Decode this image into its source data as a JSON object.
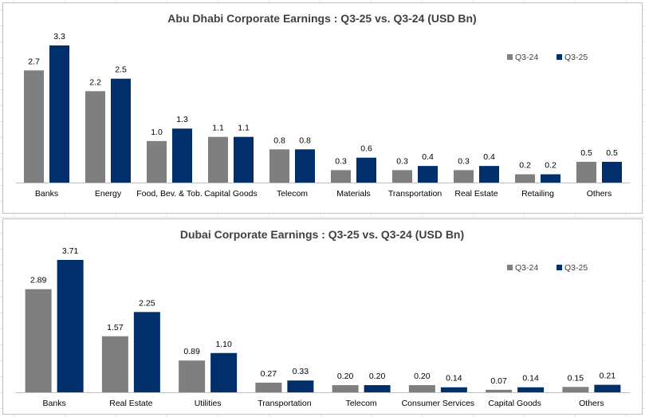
{
  "colors": {
    "q324": "#7f7f7f",
    "q325": "#002f6c",
    "axis": "#bfbfbf"
  },
  "chart_data": [
    {
      "type": "bar",
      "title": "Abu Dhabi Corporate Earnings : Q3-25 vs. Q3-24 (USD Bn)",
      "categories": [
        "Banks",
        "Energy",
        "Food, Bev. & Tob.",
        "Capital Goods",
        "Telecom",
        "Materials",
        "Transportation",
        "Real Estate",
        "Retailing",
        "Others"
      ],
      "series": [
        {
          "name": "Q3-24",
          "values": [
            2.7,
            2.2,
            1.0,
            1.1,
            0.8,
            0.3,
            0.3,
            0.3,
            0.2,
            0.5
          ],
          "labels": [
            "2.7",
            "2.2",
            "1.0",
            "1.1",
            "0.8",
            "0.3",
            "0.3",
            "0.3",
            "0.2",
            "0.5"
          ]
        },
        {
          "name": "Q3-25",
          "values": [
            3.3,
            2.5,
            1.3,
            1.1,
            0.8,
            0.6,
            0.4,
            0.4,
            0.2,
            0.5
          ],
          "labels": [
            "3.3",
            "2.5",
            "1.3",
            "1.1",
            "0.8",
            "0.6",
            "0.4",
            "0.4",
            "0.2",
            "0.5"
          ]
        }
      ],
      "ylim": [
        0,
        3.3
      ],
      "legend": "top-right",
      "grid": false
    },
    {
      "type": "bar",
      "title": "Dubai Corporate Earnings : Q3-25 vs. Q3-24 (USD Bn)",
      "categories": [
        "Banks",
        "Real Estate",
        "Utilities",
        "Transportation",
        "Telecom",
        "Consumer Services",
        "Capital Goods",
        "Others"
      ],
      "series": [
        {
          "name": "Q3-24",
          "values": [
            2.89,
            1.57,
            0.89,
            0.27,
            0.2,
            0.2,
            0.07,
            0.15
          ],
          "labels": [
            "2.89",
            "1.57",
            "0.89",
            "0.27",
            "0.20",
            "0.20",
            "0.07",
            "0.15"
          ]
        },
        {
          "name": "Q3-25",
          "values": [
            3.71,
            2.25,
            1.1,
            0.33,
            0.2,
            0.14,
            0.14,
            0.21
          ],
          "labels": [
            "3.71",
            "2.25",
            "1.10",
            "0.33",
            "0.20",
            "0.14",
            "0.14",
            "0.21"
          ]
        }
      ],
      "ylim": [
        0,
        3.71
      ],
      "legend": "top-right",
      "grid": false
    }
  ]
}
